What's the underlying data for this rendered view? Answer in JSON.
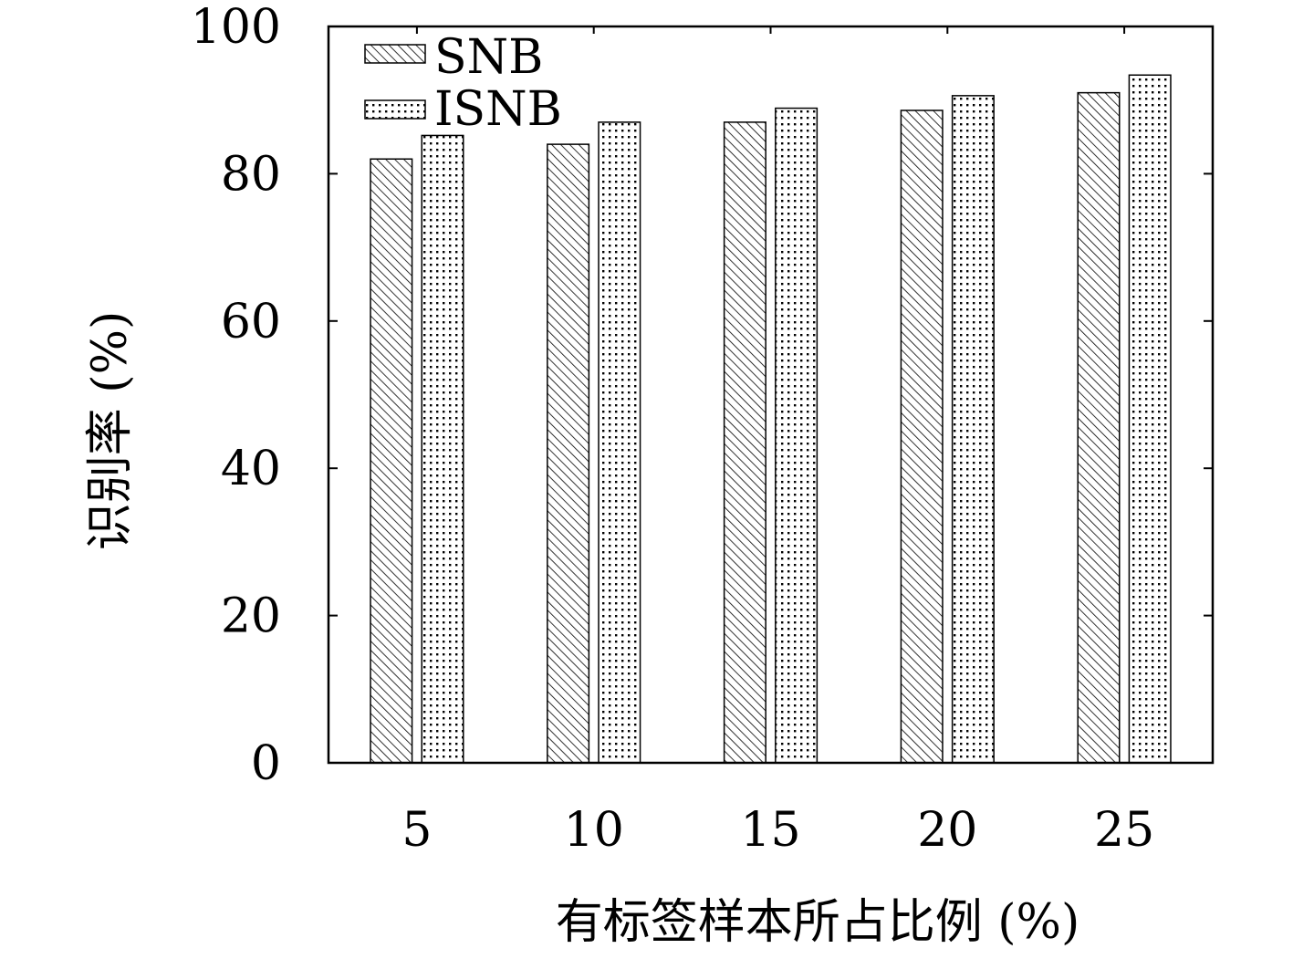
{
  "chart_data": {
    "type": "bar",
    "categories": [
      "5",
      "10",
      "15",
      "20",
      "25"
    ],
    "series": [
      {
        "name": "SNB",
        "values": [
          82,
          84,
          87,
          88.6,
          91
        ],
        "pattern": "diagonal-hatch"
      },
      {
        "name": "ISNB",
        "values": [
          85.2,
          87,
          88.9,
          90.6,
          93.4
        ],
        "pattern": "dots"
      }
    ],
    "title": "",
    "xlabel": "有标签样本所占比例 (%)",
    "ylabel": "识别率 (%)",
    "ylim": [
      0,
      100
    ],
    "yticks": [
      "0",
      "20",
      "40",
      "60",
      "80",
      "100"
    ],
    "grid": false,
    "legend_position": "top-left",
    "colors": {
      "stroke": "#000000",
      "background": "#ffffff"
    }
  }
}
